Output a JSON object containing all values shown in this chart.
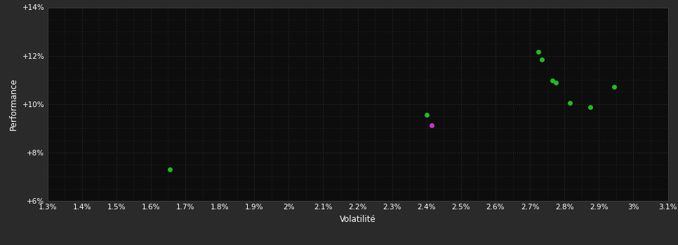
{
  "background_color": "#2a2a2a",
  "plot_bg_color": "#0d0d0d",
  "grid_color": "#2e2e2e",
  "text_color": "#ffffff",
  "xlabel": "Volatilité",
  "ylabel": "Performance",
  "xlim": [
    0.013,
    0.031
  ],
  "ylim": [
    0.06,
    0.14
  ],
  "xticks": [
    0.013,
    0.014,
    0.015,
    0.016,
    0.017,
    0.018,
    0.019,
    0.02,
    0.021,
    0.022,
    0.023,
    0.024,
    0.025,
    0.026,
    0.027,
    0.028,
    0.029,
    0.03,
    0.031
  ],
  "yticks": [
    0.06,
    0.08,
    0.1,
    0.12,
    0.14
  ],
  "xtick_labels": [
    "1.3%",
    "1.4%",
    "1.5%",
    "1.6%",
    "1.7%",
    "1.8%",
    "1.9%",
    "2%",
    "2.1%",
    "2.2%",
    "2.3%",
    "2.4%",
    "2.5%",
    "2.6%",
    "2.7%",
    "2.8%",
    "2.9%",
    "3%",
    "3.1%"
  ],
  "ytick_labels": [
    "+6%",
    "+8%",
    "+10%",
    "+12%",
    "+14%"
  ],
  "green_points": [
    [
      0.01655,
      0.073
    ],
    [
      0.024,
      0.0955
    ],
    [
      0.02725,
      0.1215
    ],
    [
      0.02735,
      0.1185
    ],
    [
      0.02765,
      0.1098
    ],
    [
      0.02775,
      0.1088
    ],
    [
      0.02815,
      0.1005
    ],
    [
      0.02875,
      0.0988
    ],
    [
      0.02945,
      0.1072
    ]
  ],
  "magenta_points": [
    [
      0.02415,
      0.0912
    ]
  ],
  "green_color": "#22bb22",
  "magenta_color": "#cc33cc",
  "marker_size": 5
}
